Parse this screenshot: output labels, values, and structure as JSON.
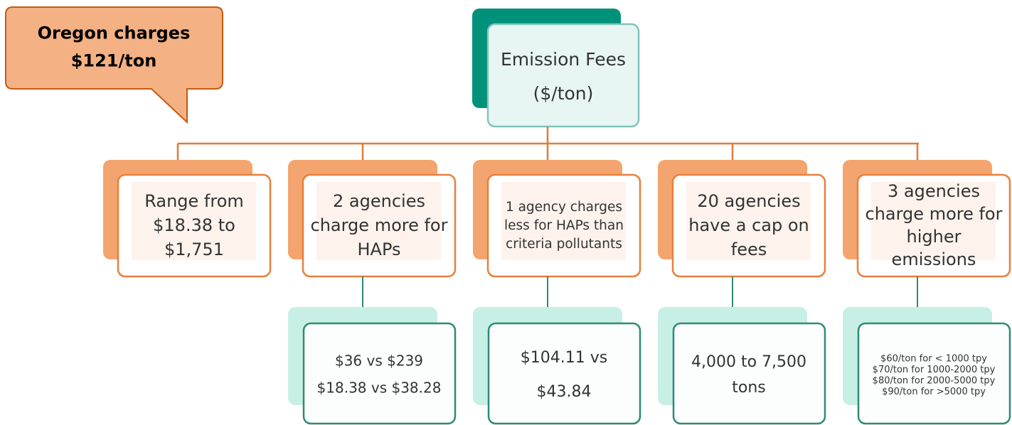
{
  "callout": {
    "lines": [
      "Oregon charges",
      "$121/ton"
    ]
  },
  "root": {
    "lines": [
      "Emission Fees",
      "($/ton)"
    ]
  },
  "nodes": [
    {
      "lines": [
        "Range from",
        "$18.38 to",
        "$1,751"
      ]
    },
    {
      "lines": [
        "2 agencies",
        "charge more for",
        "HAPs"
      ],
      "detail": {
        "lines": [
          "$36 vs $239",
          "$18.38 vs $38.28"
        ]
      }
    },
    {
      "lines": [
        "1 agency charges",
        "less for HAPs  than",
        "criteria pollutants"
      ],
      "detail": {
        "lines": [
          "$104.11 vs",
          "$43.84"
        ]
      }
    },
    {
      "lines": [
        "20 agencies",
        "have a cap on",
        "fees"
      ],
      "detail": {
        "lines": [
          "4,000 to 7,500",
          "tons"
        ]
      }
    },
    {
      "lines": [
        "3 agencies",
        "charge more for",
        "higher",
        "emissions"
      ],
      "detail": {
        "lines": [
          "$60/ton for < 1000 tpy",
          "$70/ton for 1000-2000 tpy",
          "$80/ton for 2000-5000 tpy",
          "$90/ton for >5000 tpy"
        ]
      }
    }
  ]
}
